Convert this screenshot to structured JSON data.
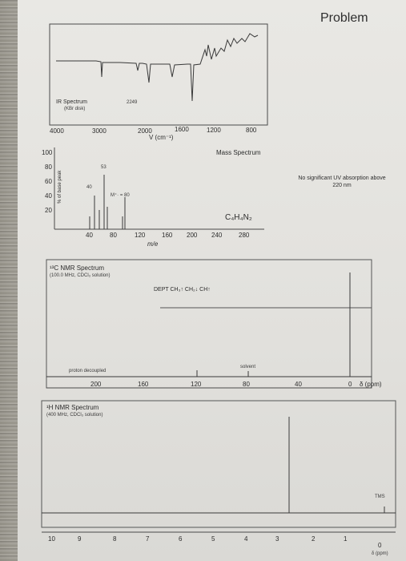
{
  "header": {
    "problem_label": "Problem",
    "uv_note": "No significant UV absorption above 220 nm"
  },
  "ir": {
    "title": "IR Spectrum",
    "subtitle": "(KBr disk)",
    "peak_label": "2249",
    "x_ticks": [
      "4000",
      "3000",
      "2000",
      "1600",
      "1200",
      "800"
    ],
    "x_label": "V (cm⁻¹)"
  },
  "mass": {
    "title": "Mass Spectrum",
    "formula": "C₄H₄N₂",
    "y_axis_label": "% of base peak",
    "y_ticks": [
      "100",
      "80",
      "60",
      "40",
      "20"
    ],
    "x_ticks": [
      "40",
      "80",
      "120",
      "160",
      "200",
      "240",
      "280"
    ],
    "x_label": "m/e",
    "peak_labels": [
      "53",
      "40"
    ],
    "molecular_ion": "M⁺· = 80"
  },
  "c13": {
    "title": "¹³C NMR Spectrum",
    "subtitle": "(100.0 MHz, CDCl₃ solution)",
    "dept_label": "DEPT CH₃↑ CH₂↓ CH↑",
    "proton_decoupled": "proton decoupled",
    "solvent": "solvent",
    "x_ticks": [
      "200",
      "160",
      "120",
      "80",
      "40",
      "0"
    ],
    "x_label": "δ (ppm)"
  },
  "h1": {
    "title": "¹H NMR Spectrum",
    "subtitle": "(400 MHz, CDCl₃ solution)",
    "tms": "TMS",
    "x_ticks": [
      "10",
      "9",
      "8",
      "7",
      "6",
      "5",
      "4",
      "3",
      "2",
      "1",
      "0"
    ],
    "x_label": "δ (ppm)"
  },
  "colors": {
    "ink": "#2c2c2c",
    "paper": "#e4e3df",
    "line": "#4a4a4a"
  }
}
